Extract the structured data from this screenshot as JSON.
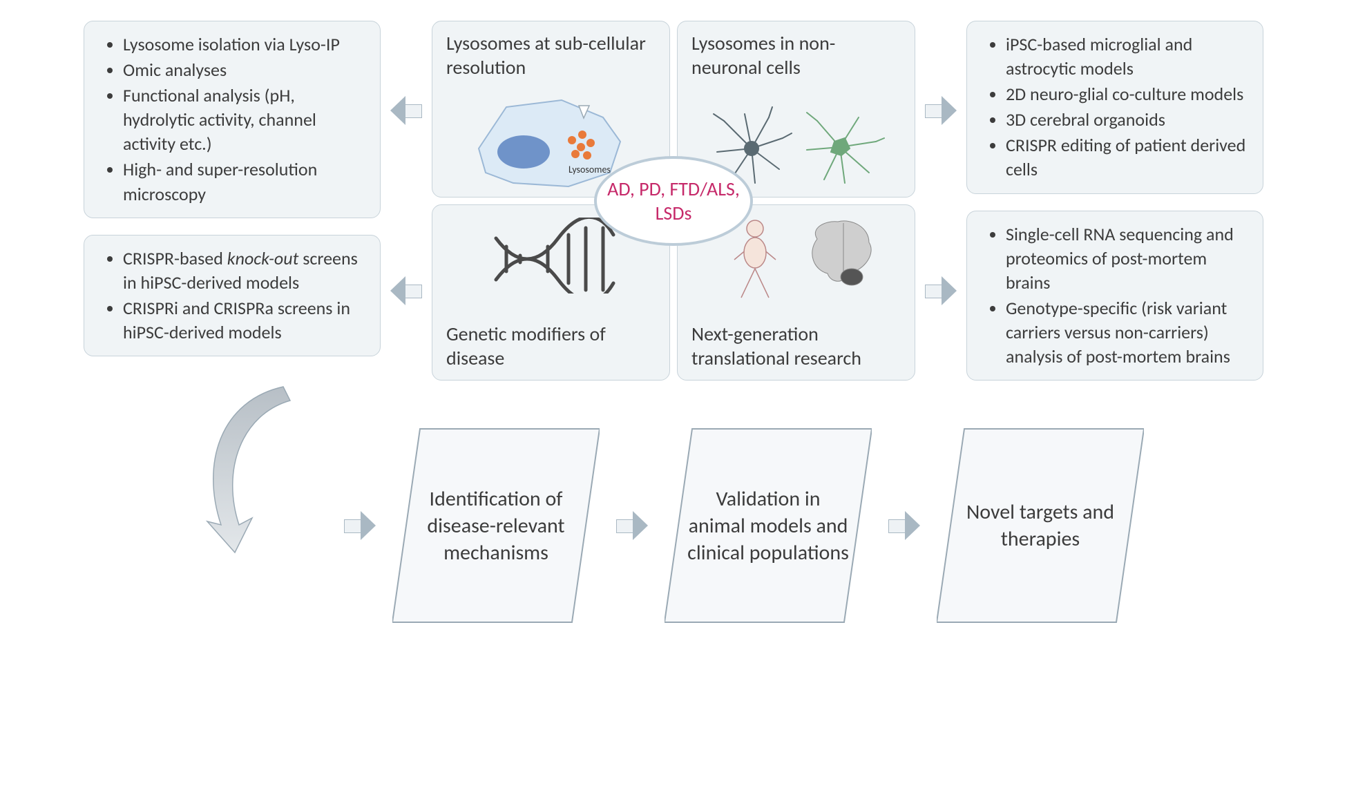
{
  "colors": {
    "box_bg": "#f0f4f6",
    "box_border": "#c8d3da",
    "text": "#3c3c3c",
    "oval_border": "#bcccd8",
    "oval_text": "#c62a6a",
    "arrow_fill": "#eef2f5",
    "arrow_border": "#a9b8c3",
    "trapezoid_fill": "#f6f8fa",
    "trapezoid_stroke": "#9aa9b4"
  },
  "left_boxes": [
    {
      "items": [
        "Lysosome isolation via Lyso-IP",
        "Omic analyses",
        "Functional analysis (pH, hydrolytic activity,  channel activity etc.)",
        "High- and super-resolution microscopy"
      ]
    },
    {
      "items_html": [
        "CRISPR-based <i>knock-out</i> screens in hiPSC-derived models",
        "CRISPRi and CRISPRa screens in hiPSC-derived models"
      ]
    }
  ],
  "right_boxes": [
    {
      "items": [
        "iPSC-based microglial and astrocytic models",
        "2D neuro-glial co-culture models",
        "3D cerebral organoids",
        "CRISPR editing of patient derived cells"
      ]
    },
    {
      "items": [
        "Single-cell RNA sequencing and proteomics of post-mortem brains",
        "Genotype-specific (risk variant carriers versus non-carriers) analysis of post-mortem brains"
      ]
    }
  ],
  "quadrants": {
    "tl": "Lysosomes at sub-cellular resolution",
    "tr": "Lysosomes in non-neuronal cells",
    "bl": "Genetic modifiers of disease",
    "br": "Next-generation translational research"
  },
  "center_oval": "AD, PD, FTD/ALS, LSDs",
  "lysosome_label": "Lysosomes",
  "flow": [
    "Identification of disease-relevant mechanisms",
    "Validation in animal models and clinical populations",
    "Novel targets and therapies"
  ]
}
